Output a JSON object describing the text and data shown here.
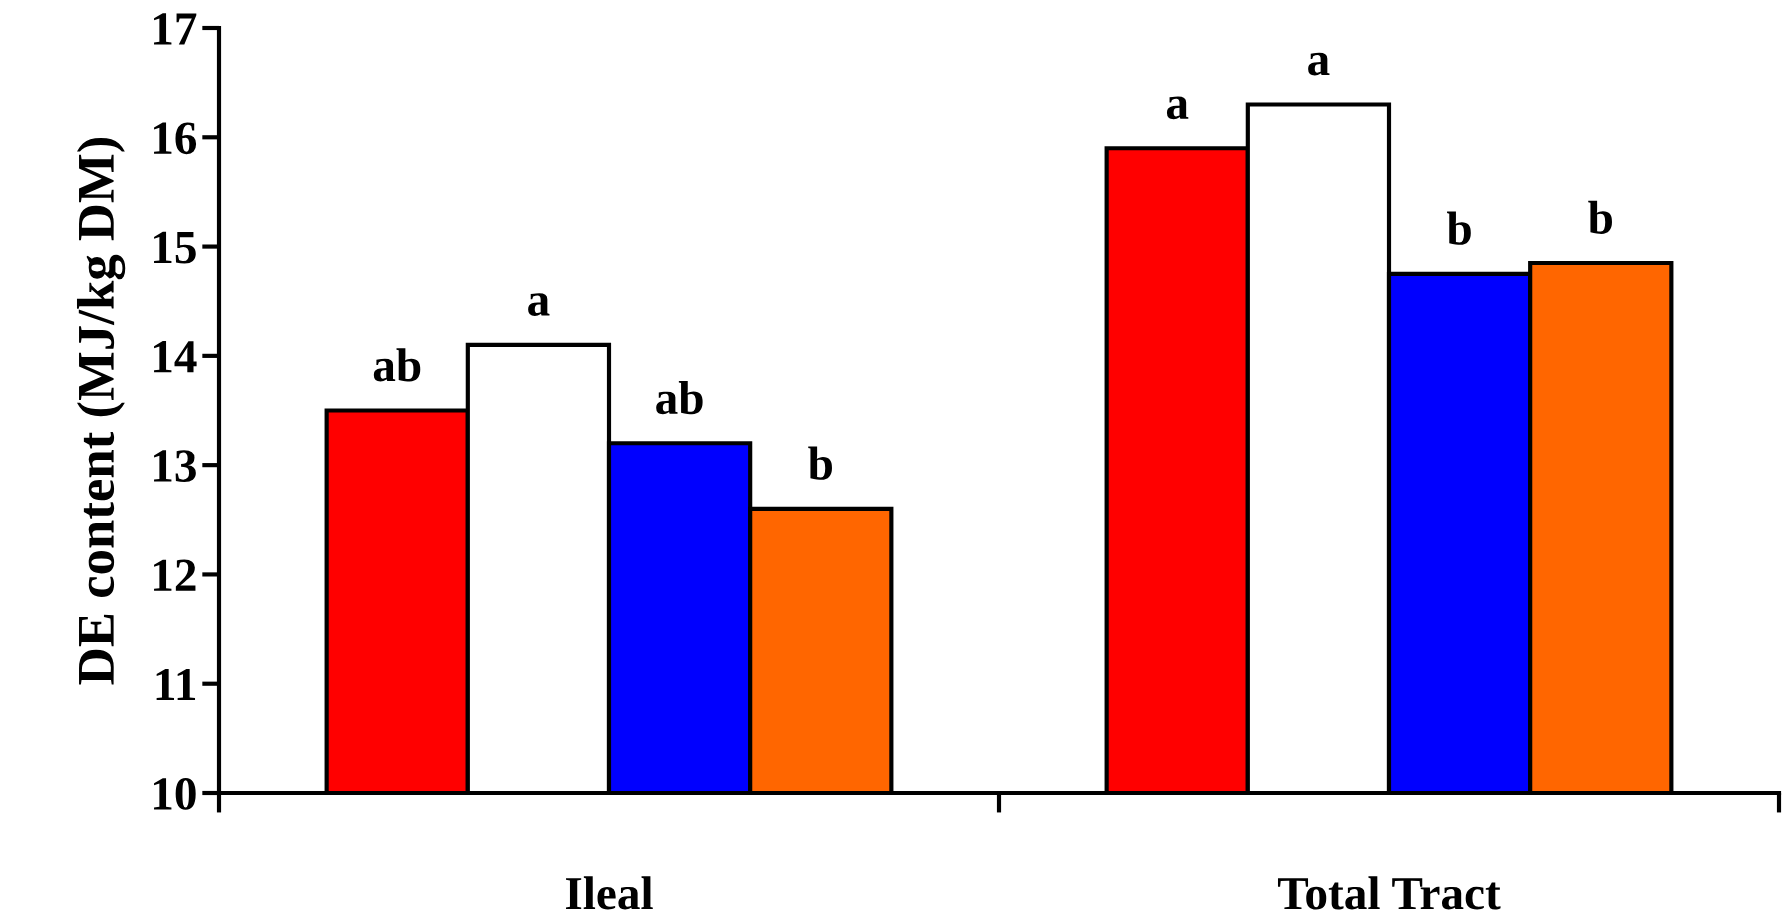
{
  "chart_data": {
    "type": "bar",
    "ylabel": "DE content (MJ/kg DM)",
    "categories": [
      "Ileal",
      "Total Tract"
    ],
    "series": [
      {
        "color": "#ff0000",
        "values": [
          13.5,
          15.9
        ],
        "value_labels": [
          "ab",
          "a"
        ]
      },
      {
        "color": "#ffffff",
        "values": [
          14.1,
          16.3
        ],
        "value_labels": [
          "a",
          "a"
        ]
      },
      {
        "color": "#0000ff",
        "values": [
          13.2,
          14.75
        ],
        "value_labels": [
          "ab",
          "b"
        ]
      },
      {
        "color": "#ff6600",
        "values": [
          12.6,
          14.85
        ],
        "value_labels": [
          "b",
          "b"
        ]
      }
    ],
    "ylim": [
      10,
      17
    ],
    "yticks": [
      10,
      11,
      12,
      13,
      14,
      15,
      16,
      17
    ],
    "grid": false,
    "legend": false
  }
}
